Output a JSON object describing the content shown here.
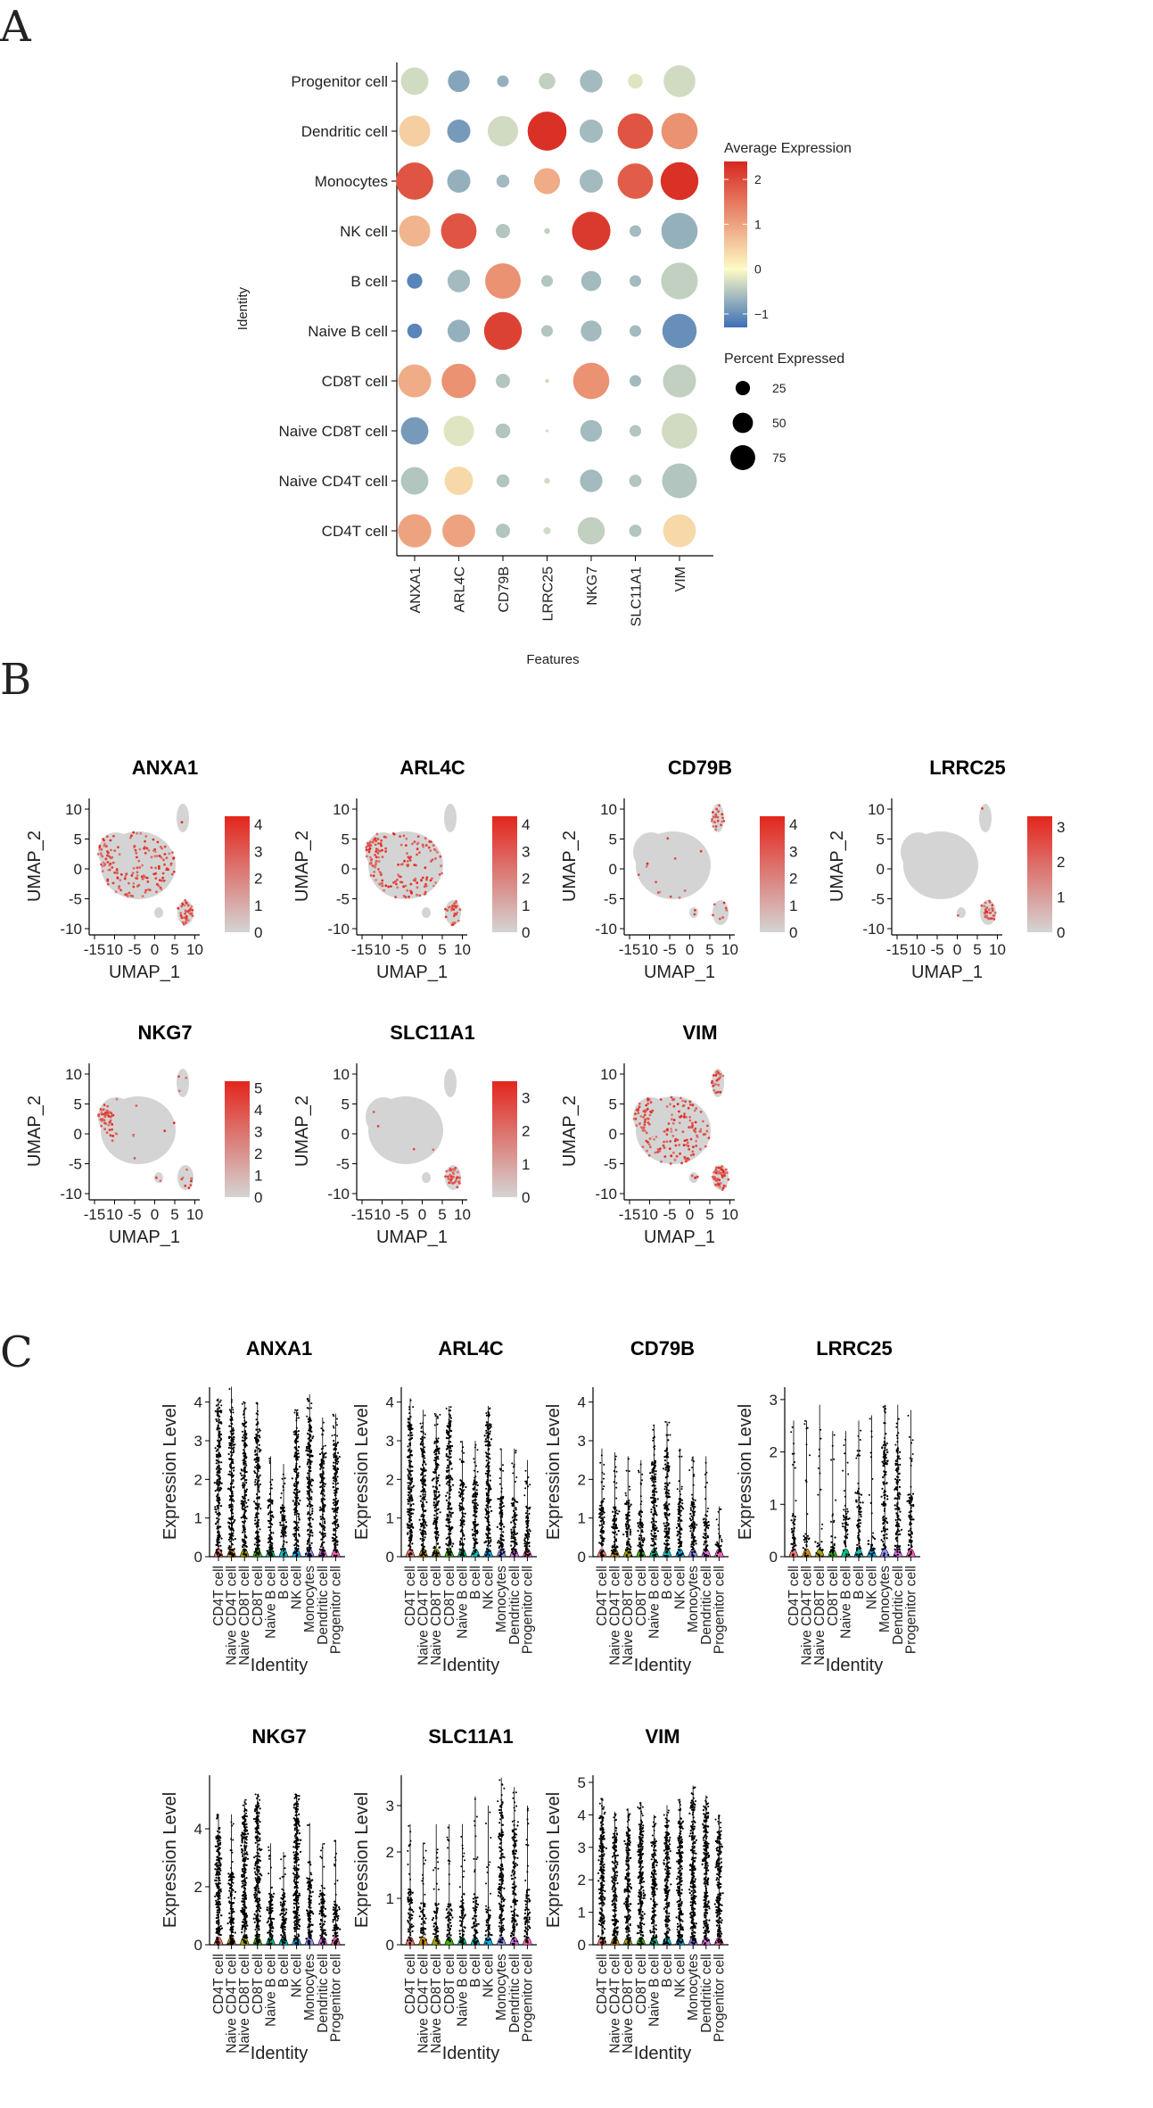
{
  "panels": {
    "a": "A",
    "b": "B",
    "c": "C"
  },
  "chart_data": [
    {
      "type": "scatter",
      "subtype": "dotplot",
      "title": "",
      "xlabel": "Features",
      "ylabel": "Identity",
      "features": [
        "ANXA1",
        "ARL4C",
        "CD79B",
        "LRRC25",
        "NKG7",
        "SLC11A1",
        "VIM"
      ],
      "identities": [
        "Progenitor cell",
        "Dendritic cell",
        "Monocytes",
        "NK cell",
        "B cell",
        "Naive B cell",
        "CD8T cell",
        "Naive CD8T cell",
        "Naive CD4T cell",
        "CD4T cell"
      ],
      "avg_expression": [
        [
          -0.3,
          -0.8,
          -0.7,
          -0.4,
          -0.6,
          -0.2,
          -0.3
        ],
        [
          0.5,
          -0.9,
          -0.3,
          2.3,
          -0.6,
          1.9,
          1.2
        ],
        [
          1.9,
          -0.7,
          -0.6,
          0.9,
          -0.6,
          1.8,
          2.3
        ],
        [
          0.8,
          1.9,
          -0.5,
          -0.4,
          2.2,
          -0.6,
          -0.7
        ],
        [
          -1.1,
          -0.6,
          1.2,
          -0.5,
          -0.6,
          -0.6,
          -0.4
        ],
        [
          -1.1,
          -0.7,
          2.1,
          -0.5,
          -0.6,
          -0.6,
          -1.0
        ],
        [
          0.9,
          1.2,
          -0.5,
          -0.3,
          1.2,
          -0.6,
          -0.4
        ],
        [
          -0.9,
          -0.2,
          -0.5,
          -0.3,
          -0.6,
          -0.5,
          -0.3
        ],
        [
          -0.5,
          0.4,
          -0.5,
          -0.3,
          -0.6,
          -0.5,
          -0.5
        ],
        [
          1.0,
          1.0,
          -0.5,
          -0.3,
          -0.4,
          -0.5,
          0.4
        ]
      ],
      "pct_expressed": [
        [
          45,
          28,
          8,
          16,
          30,
          13,
          60
        ],
        [
          58,
          32,
          55,
          90,
          32,
          75,
          78
        ],
        [
          82,
          32,
          10,
          40,
          32,
          75,
          85
        ],
        [
          58,
          75,
          12,
          2,
          88,
          8,
          78
        ],
        [
          14,
          30,
          75,
          8,
          24,
          8,
          80
        ],
        [
          13,
          30,
          85,
          8,
          26,
          8,
          70
        ],
        [
          65,
          70,
          12,
          1,
          78,
          8,
          65
        ],
        [
          45,
          55,
          13,
          0.5,
          28,
          8,
          75
        ],
        [
          45,
          48,
          10,
          2,
          30,
          9,
          72
        ],
        [
          66,
          64,
          12,
          3,
          44,
          9,
          64
        ]
      ],
      "legend_color": {
        "title": "Average Expression",
        "ticks": [
          2,
          1,
          0,
          -1
        ],
        "range": [
          -1.3,
          2.4
        ]
      },
      "legend_size": {
        "title": "Percent Expressed",
        "values": [
          25,
          50,
          75
        ]
      },
      "colors": {
        "low": "#3b6fb6",
        "mid": "#fdfbc5",
        "high": "#d7281f"
      }
    },
    {
      "type": "scatter",
      "subtype": "umap_feature_plots",
      "xlabel": "UMAP_1",
      "ylabel": "UMAP_2",
      "x_ticks": [
        "-15",
        "10",
        "-5",
        "0",
        "5",
        "10"
      ],
      "y_ticks": [
        "10",
        "5",
        "0",
        "-5",
        "-10"
      ],
      "colors": {
        "low": "#d4d4d4",
        "high": "#e3261c"
      },
      "plots": [
        {
          "gene": "ANXA1",
          "scale": [
            "4",
            "3",
            "2",
            "1",
            "0"
          ],
          "max": 4.3,
          "expr": {
            "main": 0.55,
            "left": 0.8,
            "top": 0.02,
            "small": 0.05,
            "bottom": 0.6
          }
        },
        {
          "gene": "ARL4C",
          "scale": [
            "4",
            "3",
            "2",
            "1",
            "0"
          ],
          "max": 4.3,
          "expr": {
            "main": 0.55,
            "left": 0.8,
            "top": 0.02,
            "small": 0.1,
            "bottom": 0.4
          }
        },
        {
          "gene": "CD79B",
          "scale": [
            "4",
            "3",
            "2",
            "1",
            "0"
          ],
          "max": 4.3,
          "expr": {
            "main": 0.04,
            "left": 0.04,
            "top": 0.55,
            "small": 0.05,
            "bottom": 0.05
          }
        },
        {
          "gene": "LRRC25",
          "scale": [
            "3",
            "2",
            "1",
            "0"
          ],
          "max": 3.3,
          "expr": {
            "main": 0.0,
            "left": 0.0,
            "top": 0.01,
            "small": 0.05,
            "bottom": 0.45
          }
        },
        {
          "gene": "NKG7",
          "scale": [
            "5",
            "4",
            "3",
            "2",
            "1",
            "0"
          ],
          "max": 5.3,
          "expr": {
            "main": 0.05,
            "left": 0.85,
            "top": 0.02,
            "small": 0.1,
            "bottom": 0.05
          }
        },
        {
          "gene": "SLC11A1",
          "scale": [
            "3",
            "2",
            "1",
            "0"
          ],
          "max": 3.5,
          "expr": {
            "main": 0.01,
            "left": 0.01,
            "top": 0.01,
            "small": 0.05,
            "bottom": 0.55
          }
        },
        {
          "gene": "VIM",
          "scale": [],
          "max": 0,
          "expr": {
            "main": 0.6,
            "left": 0.75,
            "top": 0.65,
            "small": 0.4,
            "bottom": 0.8
          }
        }
      ]
    },
    {
      "type": "scatter",
      "subtype": "violin_plots",
      "xlabel": "Identity",
      "ylabel": "Expression Level",
      "categories": [
        "CD4T cell",
        "Naive CD4T cell",
        "Naive CD8T cell",
        "CD8T cell",
        "Naive B cell",
        "B cell",
        "NK cell",
        "Monocytes",
        "Dendritic cell",
        "Progenitor cell"
      ],
      "category_colors": [
        "#f3766e",
        "#d89000",
        "#a3a500",
        "#39b600",
        "#00bf7d",
        "#00bfc4",
        "#00b0f6",
        "#9590ff",
        "#e76bf3",
        "#ff62bc"
      ],
      "plots": [
        {
          "gene": "ANXA1",
          "ymax": 4.2,
          "yticks": [
            "0",
            "1",
            "2",
            "3",
            "4"
          ],
          "dense_top": [
            3.8,
            3.6,
            3.5,
            3.3,
            1.5,
            1.3,
            3.3,
            3.6,
            2.7,
            3.0
          ],
          "max": [
            4.1,
            4.4,
            4.0,
            4.0,
            2.6,
            2.4,
            3.8,
            4.2,
            3.6,
            3.7
          ],
          "sparse": [
            0,
            0,
            0,
            0,
            0.5,
            0.5,
            0,
            0,
            0.7,
            1
          ]
        },
        {
          "gene": "ARL4C",
          "ymax": 4.2,
          "yticks": [
            "0",
            "1",
            "2",
            "3",
            "4"
          ],
          "dense_top": [
            3.5,
            3.1,
            3.0,
            3.5,
            2.0,
            2.0,
            3.5,
            1.6,
            1.5,
            1.3
          ],
          "max": [
            4.1,
            3.8,
            3.7,
            3.9,
            3.0,
            3.0,
            3.9,
            2.8,
            2.8,
            2.5
          ],
          "sparse": [
            0,
            0,
            0,
            0,
            0,
            0,
            0,
            0.3,
            0.8,
            1
          ]
        },
        {
          "gene": "CD79B",
          "ymax": 4.2,
          "yticks": [
            "0",
            "1",
            "2",
            "3",
            "4"
          ],
          "dense_top": [
            1.5,
            1.3,
            1.4,
            1.2,
            2.5,
            2.8,
            1.5,
            1.5,
            1.0,
            0.4
          ],
          "max": [
            2.8,
            2.7,
            2.6,
            2.5,
            3.4,
            3.5,
            2.8,
            2.6,
            2.6,
            1.3
          ],
          "sparse": [
            0.4,
            0.6,
            0.6,
            0.7,
            0,
            0,
            0.4,
            0.3,
            0.8,
            1
          ]
        },
        {
          "gene": "LRRC25",
          "ymax": 3.1,
          "yticks": [
            "0",
            "1",
            "2",
            "3"
          ],
          "dense_top": [
            0.8,
            0.4,
            0.3,
            0.4,
            0.9,
            1.3,
            0.4,
            2.2,
            2.1,
            1.2
          ],
          "max": [
            2.6,
            2.6,
            2.9,
            2.4,
            2.4,
            2.6,
            2.7,
            2.9,
            2.9,
            2.8
          ],
          "sparse": [
            1,
            1,
            1,
            1,
            1,
            0.8,
            1,
            0,
            0,
            0.9
          ]
        },
        {
          "gene": "NKG7",
          "ymax": 5.6,
          "yticks": [
            "0",
            "2",
            "4"
          ],
          "dense_top": [
            3.8,
            2.5,
            4.5,
            4.8,
            1.8,
            1.8,
            5.0,
            2.3,
            1.8,
            1.5
          ],
          "max": [
            4.5,
            4.5,
            5.0,
            5.2,
            3.5,
            3.2,
            5.2,
            4.2,
            3.5,
            3.6
          ],
          "sparse": [
            0,
            0,
            0,
            0,
            0.3,
            0.3,
            0,
            0.2,
            0.6,
            1
          ]
        },
        {
          "gene": "SLC11A1",
          "ymax": 3.5,
          "yticks": [
            "0",
            "1",
            "2",
            "3"
          ],
          "dense_top": [
            1.2,
            0.9,
            0.9,
            0.9,
            1.1,
            1.1,
            0.8,
            3.0,
            2.6,
            1.2
          ],
          "max": [
            2.6,
            2.2,
            2.6,
            2.6,
            2.6,
            3.2,
            3.0,
            3.6,
            3.4,
            3.0
          ],
          "sparse": [
            0.8,
            1,
            1,
            1,
            0.9,
            0.9,
            1,
            0,
            0,
            0.9
          ]
        },
        {
          "gene": "VIM",
          "ymax": 5.0,
          "yticks": [
            "0",
            "1",
            "2",
            "3",
            "4",
            "5"
          ],
          "dense_top": [
            4.0,
            3.5,
            3.6,
            3.8,
            3.2,
            3.7,
            3.8,
            4.4,
            4.2,
            3.5
          ],
          "max": [
            4.5,
            4.1,
            4.2,
            4.4,
            4.0,
            4.3,
            4.5,
            4.9,
            4.6,
            4.0
          ],
          "sparse": [
            0,
            0,
            0,
            0,
            0,
            0,
            0,
            0,
            0,
            0
          ]
        }
      ]
    }
  ]
}
